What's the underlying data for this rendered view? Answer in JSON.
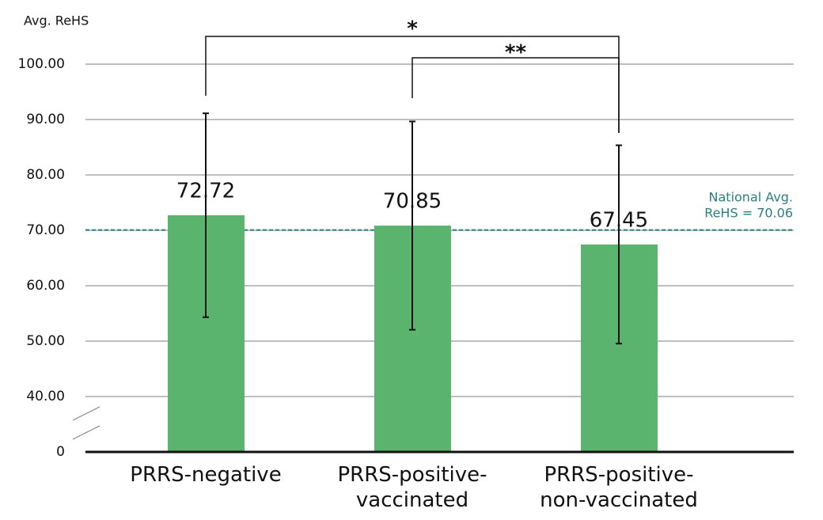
{
  "chart_data": {
    "type": "bar",
    "y_label": "Avg. ReHS",
    "categories": [
      [
        "PRRS-negative"
      ],
      [
        "PRRS-positive-",
        "vaccinated"
      ],
      [
        "PRRS-positive-",
        "non-vaccinated"
      ]
    ],
    "values": [
      72.72,
      70.85,
      67.45
    ],
    "value_labels": [
      "72.72",
      "70.85",
      "67.45"
    ],
    "errors": [
      18.4,
      18.8,
      17.9
    ],
    "color": "#5bb46e",
    "ylim": [
      0,
      100
    ],
    "y_break": [
      0,
      40
    ],
    "yticks": [
      0,
      {
        "value": 40,
        "label": "40.00"
      },
      {
        "value": 50,
        "label": "50.00"
      },
      {
        "value": 60,
        "label": "60.00"
      },
      {
        "value": 70,
        "label": "70.00"
      },
      {
        "value": 80,
        "label": "80.00"
      },
      {
        "value": 90,
        "label": "90.00"
      },
      {
        "value": 100,
        "label": "100.00"
      }
    ],
    "grid": true,
    "reference": {
      "value": 70.06,
      "label_lines": [
        "National Avg.",
        "ReHS = 70.06"
      ],
      "color": "#2a7f86"
    },
    "significance": [
      {
        "from": 0,
        "to": 2,
        "label": "*"
      },
      {
        "from": 1,
        "to": 2,
        "label": "**"
      }
    ]
  }
}
